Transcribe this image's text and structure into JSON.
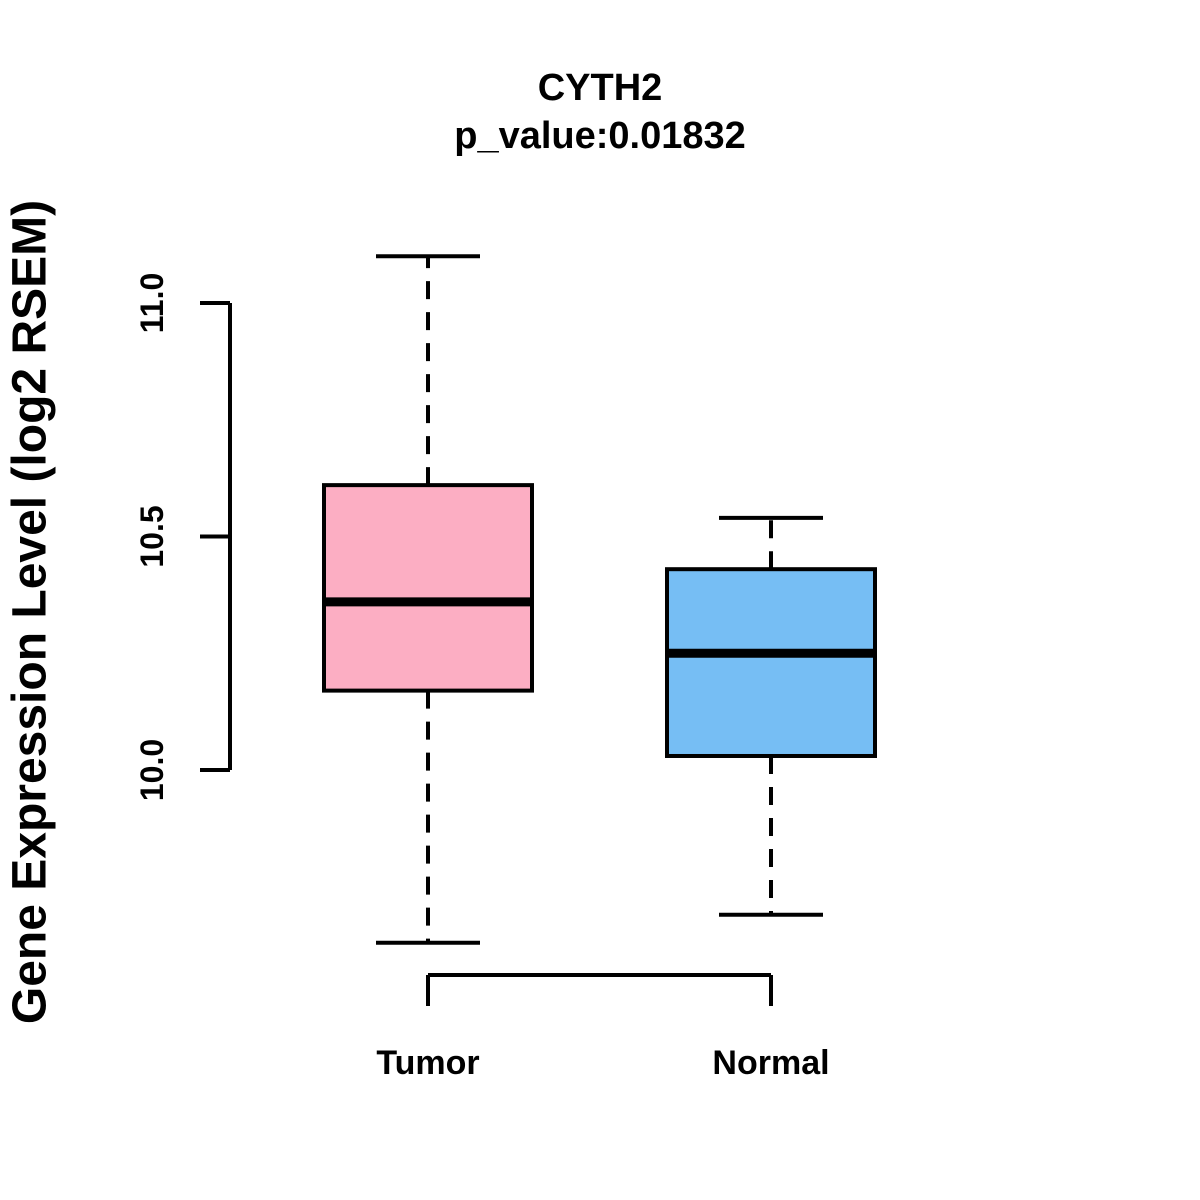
{
  "chart_data": {
    "type": "box",
    "title": "CYTH2",
    "subtitle": "p_value:0.01832",
    "p_value": 0.01832,
    "gene": "CYTH2",
    "xlabel": "",
    "ylabel": "Gene Expression Level (log2 RSEM)",
    "categories": [
      "Tumor",
      "Normal"
    ],
    "series": [
      {
        "name": "Tumor",
        "fill_color": "#FCAEC3",
        "whisker_low": 9.63,
        "q1": 10.17,
        "median": 10.36,
        "q3": 10.61,
        "whisker_high": 11.1
      },
      {
        "name": "Normal",
        "fill_color": "#76BEF4",
        "whisker_low": 9.69,
        "q1": 10.03,
        "median": 10.25,
        "q3": 10.43,
        "whisker_high": 10.54
      }
    ],
    "yticks": [
      {
        "value": 10.0,
        "label": "10.0"
      },
      {
        "value": 10.5,
        "label": "10.5"
      },
      {
        "value": 11.0,
        "label": "11.0"
      }
    ],
    "ylim": [
      9.5,
      11.15
    ],
    "grid": false,
    "legend": "none",
    "stroke_color": "#000000",
    "background": "#FFFFFF"
  }
}
